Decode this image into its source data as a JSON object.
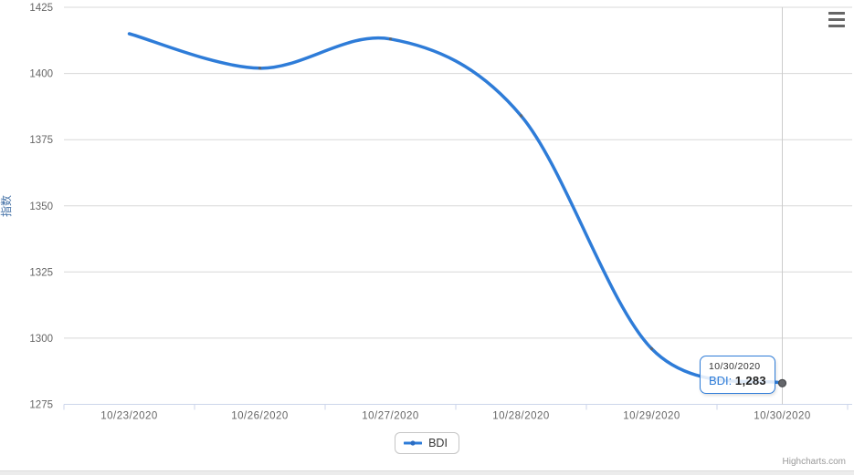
{
  "chart_data": {
    "type": "line",
    "title": "",
    "categories": [
      "10/23/2020",
      "10/26/2020",
      "10/27/2020",
      "10/28/2020",
      "10/29/2020",
      "10/30/2020"
    ],
    "series": [
      {
        "name": "BDI",
        "values": [
          1415,
          1402,
          1413,
          1384,
          1296,
          1283
        ]
      }
    ],
    "xlabel": "",
    "ylabel": "指数",
    "ylim": [
      1275,
      1425
    ],
    "yticks": [
      1275,
      1300,
      1325,
      1350,
      1375,
      1400,
      1425
    ],
    "grid": true,
    "legend_position": "bottom",
    "hovered_point": {
      "category": "10/30/2020",
      "value": 1283
    },
    "crosshair": true
  },
  "tooltip": {
    "header": "10/30/2020",
    "series_label": "BDI:",
    "value": "1,283"
  },
  "legend": {
    "items": [
      {
        "label": "BDI"
      }
    ]
  },
  "credits": {
    "text": "Highcharts.com"
  },
  "context_menu": {
    "icon": "hamburger-menu-icon"
  },
  "colors": {
    "series": "#2e7cd8",
    "series_marker": "#2a6cc2",
    "point_dot": "#5f6368",
    "hover_marker_fill": "#64666b",
    "hover_marker_stroke": "#46484c",
    "axis_title": "#4572a7",
    "axis_label": "#666666",
    "grid": "#d8d8d8",
    "axis_line": "#ccd6eb",
    "crosshair": "#cccccc",
    "tooltip_border": "#2e7cd8"
  }
}
